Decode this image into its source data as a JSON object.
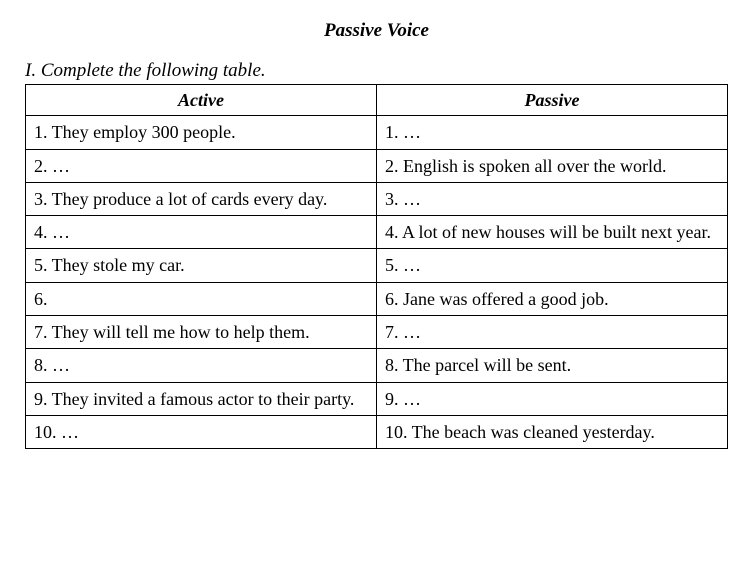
{
  "title": "Passive Voice",
  "instruction": "I. Complete the following table.",
  "table": {
    "columns": [
      "Active",
      "Passive"
    ],
    "col_widths": [
      "50%",
      "50%"
    ],
    "header_align": "center",
    "header_style": "bold-italic",
    "border_color": "#000000",
    "background_color": "#ffffff",
    "font_family": "Times New Roman",
    "font_size_pt": 14,
    "rows": [
      [
        "1. They employ 300 people.",
        "1. …"
      ],
      [
        "2. …",
        "2. English is spoken all over the world."
      ],
      [
        "3. They produce a lot of cards every day.",
        "3. …"
      ],
      [
        "4. …",
        "4. A lot of new houses will be built next year."
      ],
      [
        "5. They stole my car.",
        "5. …"
      ],
      [
        "6.",
        "6. Jane was offered a good job."
      ],
      [
        "7. They will tell me how to help them.",
        "7. …"
      ],
      [
        "8. …",
        "8. The parcel will be sent."
      ],
      [
        "9. They invited a famous actor to their party.",
        "9. …"
      ],
      [
        "10. …",
        "10. The beach was cleaned yesterday."
      ]
    ]
  }
}
